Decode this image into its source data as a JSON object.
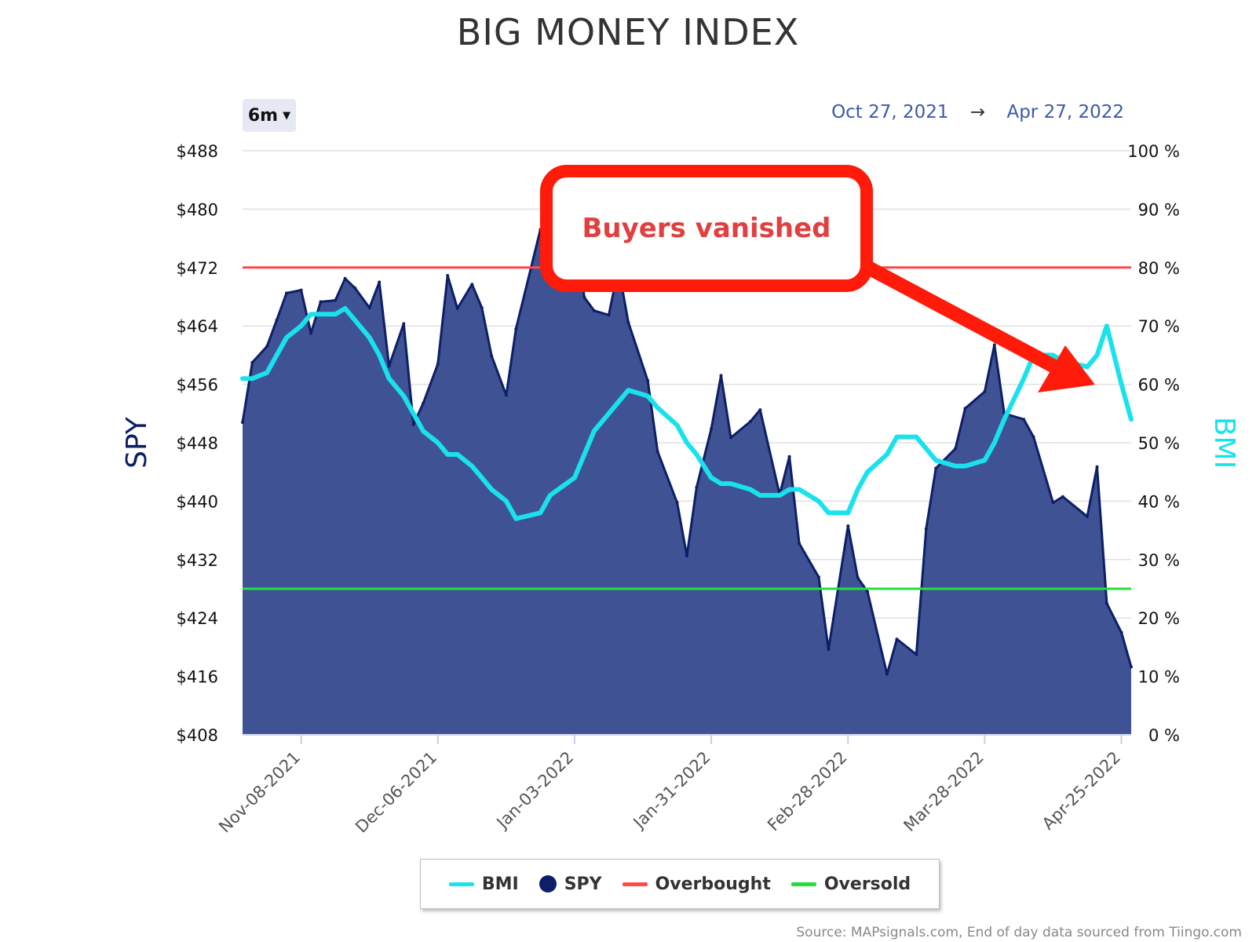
{
  "title": "BIG MONEY INDEX",
  "range_selector": {
    "label": "6m"
  },
  "date_range": {
    "from": "Oct 27, 2021",
    "arrow": "→",
    "to": "Apr 27, 2022"
  },
  "annotation": {
    "text": "Buyers vanished"
  },
  "source": "Source: MAPsignals.com, End of day data sourced from Tiingo.com",
  "colors": {
    "spy_fill": "#3f5294",
    "spy_line": "#0d1f66",
    "bmi": "#19e2ec",
    "overbought": "#ff4a4a",
    "oversold": "#22e03c",
    "annotation": "#ff1a0a",
    "annotation_text": "#e04040"
  },
  "legend": [
    {
      "name": "BMI",
      "shape": "line",
      "color": "#19e2ec"
    },
    {
      "name": "SPY",
      "shape": "dot",
      "color": "#0d1f66"
    },
    {
      "name": "Overbought",
      "shape": "line",
      "color": "#ff4a4a"
    },
    {
      "name": "Oversold",
      "shape": "line",
      "color": "#22e03c"
    }
  ],
  "chart_data": {
    "type": "area",
    "x_start": "2021-10-27",
    "x_end": "2022-04-27",
    "x_tick_labels": [
      "Nov-08-2021",
      "Dec-06-2021",
      "Jan-03-2022",
      "Jan-31-2022",
      "Feb-28-2022",
      "Mar-28-2022",
      "Apr-25-2022"
    ],
    "y_left": {
      "label": "SPY",
      "min": 408,
      "max": 488,
      "ticks": [
        408,
        416,
        424,
        432,
        440,
        448,
        456,
        464,
        472,
        480,
        488
      ],
      "tick_labels": [
        "$408",
        "$416",
        "$424",
        "$432",
        "$440",
        "$448",
        "$456",
        "$464",
        "$472",
        "$480",
        "$488"
      ]
    },
    "y_right": {
      "label": "BMI",
      "min": 0,
      "max": 100,
      "ticks": [
        0,
        10,
        20,
        30,
        40,
        50,
        60,
        70,
        80,
        90,
        100
      ],
      "tick_labels": [
        "0 %",
        "10 %",
        "20 %",
        "30 %",
        "40 %",
        "50 %",
        "60 %",
        "70 %",
        "80 %",
        "90 %",
        "100 %"
      ]
    },
    "reference_lines": [
      {
        "name": "Overbought",
        "axis": "right",
        "value": 80
      },
      {
        "name": "Oversold",
        "axis": "right",
        "value": 25
      }
    ],
    "grid": true,
    "series": [
      {
        "name": "SPY",
        "type": "area",
        "axis": "left",
        "x": [
          "2021-10-27",
          "2021-10-29",
          "2021-11-01",
          "2021-11-03",
          "2021-11-05",
          "2021-11-08",
          "2021-11-10",
          "2021-11-12",
          "2021-11-15",
          "2021-11-17",
          "2021-11-19",
          "2021-11-22",
          "2021-11-24",
          "2021-11-26",
          "2021-11-29",
          "2021-12-01",
          "2021-12-03",
          "2021-12-06",
          "2021-12-08",
          "2021-12-10",
          "2021-12-13",
          "2021-12-15",
          "2021-12-17",
          "2021-12-20",
          "2021-12-22",
          "2021-12-27",
          "2021-12-29",
          "2022-01-03",
          "2022-01-05",
          "2022-01-07",
          "2022-01-10",
          "2022-01-12",
          "2022-01-14",
          "2022-01-18",
          "2022-01-20",
          "2022-01-24",
          "2022-01-26",
          "2022-01-28",
          "2022-01-31",
          "2022-02-02",
          "2022-02-04",
          "2022-02-08",
          "2022-02-10",
          "2022-02-14",
          "2022-02-16",
          "2022-02-18",
          "2022-02-22",
          "2022-02-24",
          "2022-02-28",
          "2022-03-02",
          "2022-03-04",
          "2022-03-08",
          "2022-03-10",
          "2022-03-14",
          "2022-03-16",
          "2022-03-18",
          "2022-03-22",
          "2022-03-24",
          "2022-03-28",
          "2022-03-30",
          "2022-04-01",
          "2022-04-05",
          "2022-04-07",
          "2022-04-11",
          "2022-04-13",
          "2022-04-18",
          "2022-04-20",
          "2022-04-22",
          "2022-04-25",
          "2022-04-27"
        ],
        "values": [
          450.8,
          459.0,
          461.2,
          464.8,
          468.5,
          468.9,
          463.0,
          467.3,
          467.5,
          470.5,
          469.2,
          466.5,
          470.0,
          458.5,
          464.3,
          450.5,
          453.4,
          458.8,
          470.9,
          466.4,
          469.7,
          466.5,
          459.9,
          454.5,
          463.6,
          477.2,
          477.9,
          477.7,
          467.9,
          466.1,
          465.5,
          472.0,
          464.5,
          456.5,
          446.8,
          439.8,
          432.5,
          441.9,
          449.9,
          457.2,
          448.7,
          450.9,
          452.5,
          440.9,
          446.1,
          434.2,
          429.6,
          419.7,
          436.6,
          429.5,
          427.6,
          416.3,
          421.1,
          419.0,
          436.2,
          444.5,
          447.2,
          452.7,
          455.0,
          461.4,
          452.0,
          451.2,
          448.8,
          439.8,
          440.6,
          437.9,
          444.7,
          426.0,
          422.0,
          417.3
        ]
      },
      {
        "name": "BMI",
        "type": "line",
        "axis": "right",
        "x": [
          "2021-10-27",
          "2021-10-29",
          "2021-11-01",
          "2021-11-03",
          "2021-11-05",
          "2021-11-08",
          "2021-11-10",
          "2021-11-12",
          "2021-11-15",
          "2021-11-17",
          "2021-11-19",
          "2021-11-22",
          "2021-11-24",
          "2021-11-26",
          "2021-11-29",
          "2021-12-01",
          "2021-12-03",
          "2021-12-06",
          "2021-12-08",
          "2021-12-10",
          "2021-12-13",
          "2021-12-15",
          "2021-12-17",
          "2021-12-20",
          "2021-12-22",
          "2021-12-27",
          "2021-12-29",
          "2022-01-03",
          "2022-01-05",
          "2022-01-07",
          "2022-01-10",
          "2022-01-12",
          "2022-01-14",
          "2022-01-18",
          "2022-01-20",
          "2022-01-24",
          "2022-01-26",
          "2022-01-28",
          "2022-01-31",
          "2022-02-02",
          "2022-02-04",
          "2022-02-08",
          "2022-02-10",
          "2022-02-14",
          "2022-02-16",
          "2022-02-18",
          "2022-02-22",
          "2022-02-24",
          "2022-02-28",
          "2022-03-02",
          "2022-03-04",
          "2022-03-08",
          "2022-03-10",
          "2022-03-14",
          "2022-03-16",
          "2022-03-18",
          "2022-03-22",
          "2022-03-24",
          "2022-03-28",
          "2022-03-30",
          "2022-04-01",
          "2022-04-05",
          "2022-04-07",
          "2022-04-11",
          "2022-04-13",
          "2022-04-18",
          "2022-04-20",
          "2022-04-22",
          "2022-04-25",
          "2022-04-27"
        ],
        "values": [
          61,
          61,
          62,
          65,
          68,
          70,
          72,
          72,
          72,
          73,
          71,
          68,
          65,
          61,
          58,
          55,
          52,
          50,
          48,
          48,
          46,
          44,
          42,
          40,
          37,
          38,
          41,
          44,
          48,
          52,
          55,
          57,
          59,
          58,
          56,
          53,
          50,
          48,
          44,
          43,
          43,
          42,
          41,
          41,
          42,
          42,
          40,
          38,
          38,
          42,
          45,
          48,
          51,
          51,
          49,
          47,
          46,
          46,
          47,
          50,
          54,
          61,
          65,
          65,
          64,
          63,
          65,
          70,
          60,
          54
        ]
      }
    ]
  }
}
